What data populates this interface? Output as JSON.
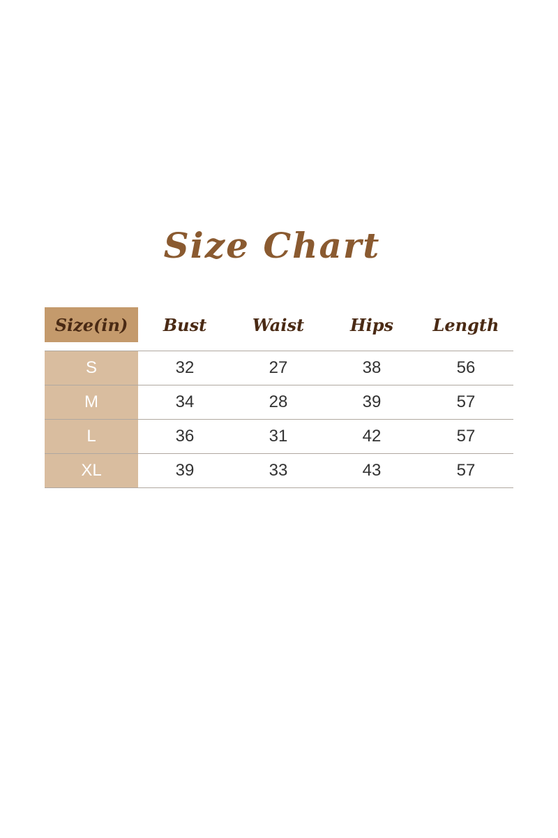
{
  "title": "Size Chart",
  "chart_data": {
    "type": "table",
    "title": "Size Chart",
    "columns": [
      "Size(in)",
      "Bust",
      "Waist",
      "Hips",
      "Length"
    ],
    "rows": [
      [
        "S",
        "32",
        "27",
        "38",
        "56"
      ],
      [
        "M",
        "34",
        "28",
        "39",
        "57"
      ],
      [
        "L",
        "36",
        "31",
        "42",
        "57"
      ],
      [
        "XL",
        "39",
        "33",
        "43",
        "57"
      ]
    ],
    "colors": {
      "title": "#8a5a30",
      "header_size_cell": "#c49a6c",
      "size_cells": "#d9bd9f",
      "header_text": "#4a2a14"
    }
  }
}
